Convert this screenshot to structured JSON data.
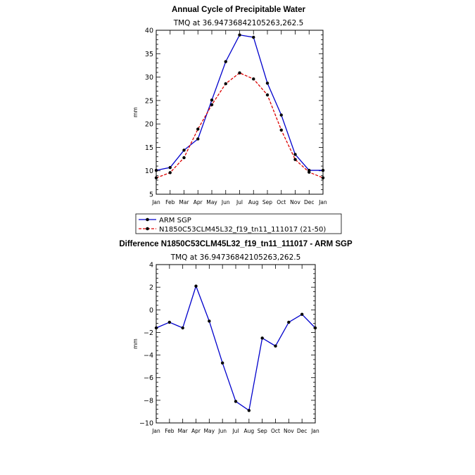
{
  "chart_data": [
    {
      "type": "line",
      "title": "Annual Cycle of Precipitable Water",
      "subtitle": "TMQ  at  36.94736842105263,262.5",
      "ylabel": "mm",
      "xlabel": "",
      "ylim": [
        5,
        40
      ],
      "yticks": [
        5,
        10,
        15,
        20,
        25,
        30,
        35,
        40
      ],
      "categories": [
        "Jan",
        "Feb",
        "Mar",
        "Apr",
        "May",
        "Jun",
        "Jul",
        "Aug",
        "Sep",
        "Oct",
        "Nov",
        "Dec",
        "Jan"
      ],
      "series": [
        {
          "name": "ARM SGP",
          "color": "#0000cc",
          "dash": "solid",
          "values": [
            10.1,
            10.7,
            14.4,
            16.8,
            25.1,
            33.3,
            39.0,
            38.5,
            28.7,
            21.9,
            13.5,
            10.1,
            10.1
          ]
        },
        {
          "name": "N1850C53CLM45L32_f19_tn11_111017 (21-50)",
          "color": "#dd0000",
          "dash": "dashed",
          "values": [
            8.5,
            9.6,
            12.8,
            18.9,
            24.1,
            28.6,
            30.9,
            29.6,
            26.2,
            18.7,
            12.4,
            9.7,
            8.5
          ]
        }
      ],
      "legend_position": "below"
    },
    {
      "type": "line",
      "title": "Difference N1850C53CLM45L32_f19_tn11_111017 - ARM SGP",
      "subtitle": "TMQ  at  36.94736842105263,262.5",
      "ylabel": "mm",
      "xlabel": "",
      "ylim": [
        -10,
        4
      ],
      "yticks": [
        -10,
        -8,
        -6,
        -4,
        -2,
        0,
        2,
        4
      ],
      "categories": [
        "Jan",
        "Feb",
        "Mar",
        "Apr",
        "May",
        "Jun",
        "Jul",
        "Aug",
        "Sep",
        "Oct",
        "Nov",
        "Dec",
        "Jan"
      ],
      "series": [
        {
          "name": "",
          "color": "#0000cc",
          "dash": "solid",
          "values": [
            -1.6,
            -1.1,
            -1.6,
            2.1,
            -1.0,
            -4.7,
            -8.1,
            -8.9,
            -2.5,
            -3.2,
            -1.1,
            -0.4,
            -1.6
          ]
        }
      ]
    }
  ]
}
